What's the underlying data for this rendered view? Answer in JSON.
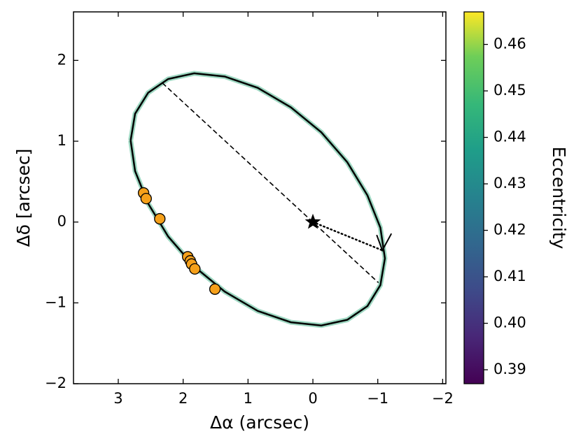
{
  "chart_data": {
    "type": "scatter",
    "xlabel": "Δα (arcsec)",
    "ylabel": "Δδ [arcsec]",
    "xlim": [
      3.69,
      -2.05
    ],
    "ylim": [
      -2,
      2.6
    ],
    "xticks": [
      3,
      2,
      1,
      0,
      {
        "value": -1,
        "label": "−1"
      },
      {
        "value": -2,
        "label": "−2"
      }
    ],
    "yticks": [
      {
        "value": -2,
        "label": "−2"
      },
      {
        "value": -1,
        "label": "−1"
      },
      0,
      1,
      2
    ],
    "series": [
      {
        "color": "#f5a01a",
        "x": [
          2.61,
          2.57,
          2.36,
          1.93,
          1.89,
          1.87,
          1.82,
          1.51
        ],
        "y": [
          0.36,
          0.29,
          0.04,
          -0.43,
          -0.48,
          -0.52,
          -0.58,
          -0.83
        ]
      }
    ],
    "orbit": {
      "color": "#000000",
      "band_color": "#4fb88f",
      "x": [
        2.81,
        2.74,
        2.54,
        2.23,
        1.83,
        1.36,
        0.85,
        0.34,
        -0.13,
        -0.53,
        -0.84,
        -1.04,
        -1.11,
        -1.04,
        -0.84,
        -0.53,
        -0.13,
        0.34,
        0.85,
        1.36,
        1.83,
        2.23,
        2.54,
        2.74,
        2.81
      ],
      "y": [
        1.01,
        1.34,
        1.6,
        1.77,
        1.84,
        1.8,
        1.66,
        1.42,
        1.11,
        0.74,
        0.33,
        -0.07,
        -0.45,
        -0.78,
        -1.04,
        -1.21,
        -1.28,
        -1.24,
        -1.1,
        -0.86,
        -0.55,
        -0.18,
        0.23,
        0.63,
        1.01
      ]
    },
    "star": {
      "x": 0,
      "y": 0
    },
    "line_of_nodes": {
      "x": [
        2.32,
        -1.01
      ],
      "y": [
        1.72,
        -0.75
      ]
    },
    "periastron": {
      "x": [
        0,
        -1.07
      ],
      "y": [
        0,
        -0.35
      ]
    },
    "colorbar": {
      "label": "Eccentricity",
      "colormap": "viridis",
      "lim": [
        0.387,
        0.467
      ],
      "ticks": [
        0.39,
        {
          "value": 0.4,
          "label": "0.40"
        },
        0.41,
        0.42,
        0.43,
        0.44,
        0.45,
        0.46
      ]
    }
  }
}
